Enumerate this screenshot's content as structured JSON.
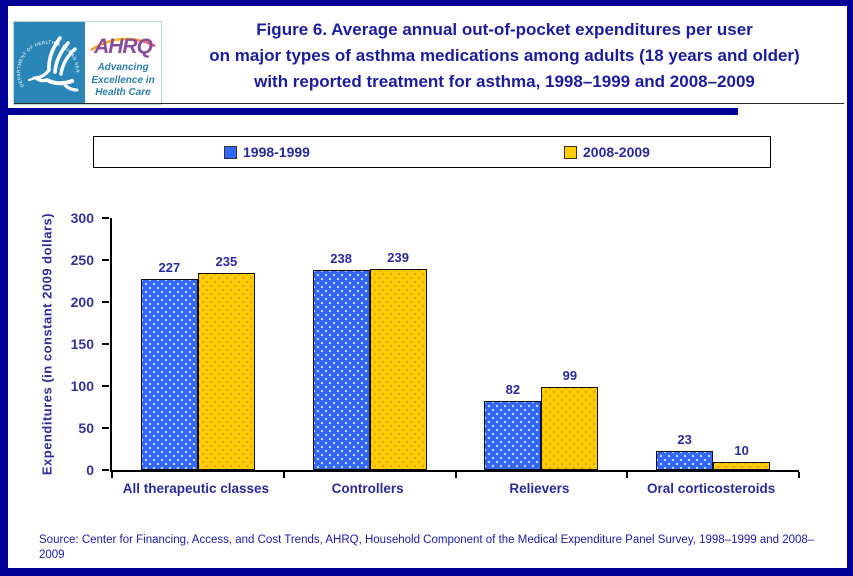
{
  "header": {
    "title_lines": [
      "Figure 6. Average annual out-of-pocket expenditures per user",
      "on major types of asthma medications among adults (18 years and older)",
      "with reported treatment for asthma, 1998–1999 and 2008–2009"
    ],
    "logo": {
      "org_abbr": "AHRQ",
      "tagline_lines": [
        "Advancing",
        "Excellence in",
        "Health Care"
      ],
      "seal_text": "DEPARTMENT OF HEALTH & HUMAN SERVICES · USA"
    }
  },
  "chart_data": {
    "type": "bar",
    "categories": [
      "All therapeutic classes",
      "Controllers",
      "Relievers",
      "Oral corticosteroids"
    ],
    "series": [
      {
        "name": "1998-1999",
        "color": "#3366fa",
        "values": [
          227,
          238,
          82,
          23
        ]
      },
      {
        "name": "2008-2009",
        "color": "#ffcc00",
        "values": [
          235,
          239,
          99,
          10
        ]
      }
    ],
    "title": "Figure 6. Average annual out-of-pocket expenditures per user on major types of asthma medications among adults (18 years and older) with reported treatment for asthma, 1998–1999 and 2008–2009",
    "xlabel": "",
    "ylabel": "Expenditures (in constant 2009 dollars)",
    "ylim": [
      0,
      300
    ],
    "ytick_step": 50,
    "grid": false,
    "legend_position": "top"
  },
  "source": {
    "text": "Source: Center for Financing, Access, and Cost Trends, AHRQ, Household Component of the Medical Expenditure Panel Survey, 1998–1999 and 2008–2009"
  },
  "colors": {
    "frame_navy": "#000099",
    "title_text": "#1c1c9e",
    "axis_text": "#333399",
    "series1_blue": "#3366fa",
    "series2_yellow": "#ffcc00",
    "logo_teal": "#2a86b7",
    "logo_purple": "#8a4d9e"
  }
}
